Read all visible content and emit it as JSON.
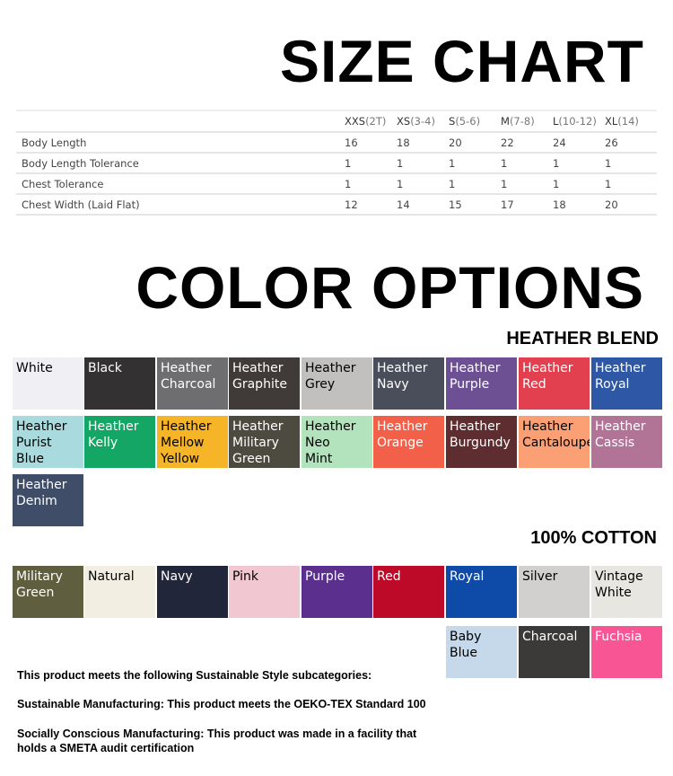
{
  "size_title": "SIZE CHART",
  "size_table": {
    "headers": [
      [
        "XXS",
        "(2T)"
      ],
      [
        "XS",
        "(3-4)"
      ],
      [
        "S",
        "(5-6)"
      ],
      [
        "M",
        "(7-8)"
      ],
      [
        "L",
        "(10-12)"
      ],
      [
        "XL",
        "(14)"
      ]
    ],
    "rows": [
      {
        "label": "Body Length",
        "values": [
          "16",
          "18",
          "20",
          "22",
          "24",
          "26"
        ]
      },
      {
        "label": "Body Length Tolerance",
        "values": [
          "1",
          "1",
          "1",
          "1",
          "1",
          "1"
        ]
      },
      {
        "label": "Chest Tolerance",
        "values": [
          "1",
          "1",
          "1",
          "1",
          "1",
          "1"
        ]
      },
      {
        "label": "Chest Width (Laid Flat)",
        "values": [
          "12",
          "14",
          "15",
          "17",
          "18",
          "20"
        ]
      }
    ]
  },
  "color_title": "COLOR OPTIONS",
  "heather_title": "HEATHER BLEND",
  "heather": [
    {
      "name": "White",
      "color": "#f0f0f4",
      "text": "#000"
    },
    {
      "name": "Black",
      "color": "#333132",
      "text": "#fff"
    },
    {
      "name": "Heather Charcoal",
      "color": "#6e6d70",
      "text": "#fff"
    },
    {
      "name": "Heather Graphite",
      "color": "#403a39",
      "text": "#fff"
    },
    {
      "name": "Heather Grey",
      "color": "#c2c0bf",
      "text": "#000"
    },
    {
      "name": "Heather Navy",
      "color": "#4a4e5a",
      "text": "#fff"
    },
    {
      "name": "Heather Purple",
      "color": "#6c5093",
      "text": "#fff"
    },
    {
      "name": "Heather Red",
      "color": "#e2404f",
      "text": "#fff"
    },
    {
      "name": "Heather Royal",
      "color": "#2e58a6",
      "text": "#fff"
    },
    {
      "name": "Heather Purist Blue",
      "color": "#a9dadd",
      "text": "#000"
    },
    {
      "name": "Heather Kelly",
      "color": "#14a665",
      "text": "#fff"
    },
    {
      "name": "Heather Mellow Yellow",
      "color": "#f5b526",
      "text": "#000"
    },
    {
      "name": "Heather Military Green",
      "color": "#4d4a40",
      "text": "#fff"
    },
    {
      "name": "Heather Neo Mint",
      "color": "#b3e3bd",
      "text": "#000"
    },
    {
      "name": "Heather Orange",
      "color": "#f3604a",
      "text": "#fff"
    },
    {
      "name": "Heather Burgundy",
      "color": "#5e2d30",
      "text": "#fff"
    },
    {
      "name": "Heather Cantaloupe",
      "color": "#fba074",
      "text": "#000"
    },
    {
      "name": "Heather Cassis",
      "color": "#b17497",
      "text": "#fff"
    },
    {
      "name": "Heather Denim",
      "color": "#3f4d68",
      "text": "#fff"
    }
  ],
  "cotton_title": "100% COTTON",
  "cotton": [
    {
      "name": "Military Green",
      "color": "#5f5e3e",
      "text": "#fff"
    },
    {
      "name": "Natural",
      "color": "#f2eee2",
      "text": "#000"
    },
    {
      "name": "Navy",
      "color": "#22263a",
      "text": "#fff"
    },
    {
      "name": "Pink",
      "color": "#f1c8d2",
      "text": "#000"
    },
    {
      "name": "Purple",
      "color": "#5b2f8e",
      "text": "#fff"
    },
    {
      "name": "Red",
      "color": "#bd0a28",
      "text": "#fff"
    },
    {
      "name": "Royal",
      "color": "#0e4aa8",
      "text": "#fff"
    },
    {
      "name": "Silver",
      "color": "#d2d0ce",
      "text": "#000"
    },
    {
      "name": "Vintage White",
      "color": "#e8e6e1",
      "text": "#000"
    },
    {
      "name": "Baby Blue",
      "color": "#c6d9eb",
      "text": "#000"
    },
    {
      "name": "Charcoal",
      "color": "#3c3a39",
      "text": "#fff"
    },
    {
      "name": "Fuchsia",
      "color": "#f85595",
      "text": "#fff"
    }
  ],
  "sustain": [
    "This product meets the following Sustainable Style subcategories:",
    "Sustainable Manufacturing: This product meets the OEKO-TEX Standard 100",
    "Socially Conscious Manufacturing: This product was made in a facility that",
    "holds a SMETA audit certification"
  ]
}
